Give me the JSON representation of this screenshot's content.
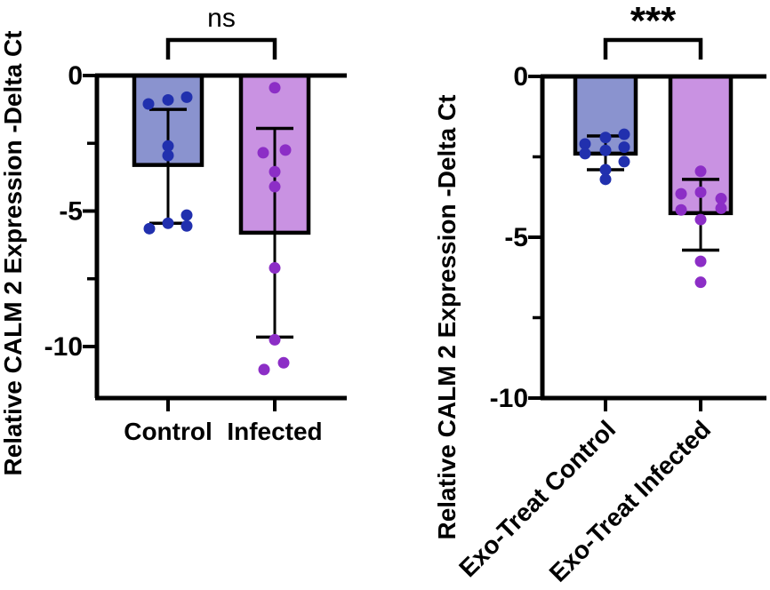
{
  "figure": {
    "background": "#ffffff",
    "axis_color": "#000000",
    "text_color": "#000000"
  },
  "chart_data": [
    {
      "type": "bar",
      "id": "control-vs-infected",
      "title": "",
      "ylabel": "Relative CALM 2 Expression -Delta Ct",
      "xlabel": "",
      "ylim": [
        0,
        -11.9
      ],
      "yticks": [
        {
          "v": 0,
          "label": "0"
        },
        {
          "v": -5,
          "label": "-5"
        },
        {
          "v": -10,
          "label": "-10"
        }
      ],
      "minor_yticks": [
        -2.5,
        -7.5
      ],
      "grid": false,
      "significance": {
        "label": "ns",
        "bold": false,
        "font_size": 30,
        "between": [
          0,
          1
        ]
      },
      "xtick_label_rotation": 0,
      "categories": [
        {
          "label": "Control",
          "mean": -3.3,
          "sd_high": -1.25,
          "sd_low": -5.45,
          "bar_color": "#8a93cf",
          "point_color": "#2130ae",
          "points": [
            {
              "dx": 21,
              "y": -0.8
            },
            {
              "dx": 0,
              "y": -0.9
            },
            {
              "dx": -22,
              "y": -1.05
            },
            {
              "dx": 0,
              "y": -2.6
            },
            {
              "dx": 0,
              "y": -2.95
            },
            {
              "dx": 21,
              "y": -5.15
            },
            {
              "dx": 0,
              "y": -5.45
            },
            {
              "dx": 21,
              "y": -5.55
            },
            {
              "dx": -21,
              "y": -5.65
            }
          ]
        },
        {
          "label": "Infected",
          "mean": -5.8,
          "sd_high": -1.95,
          "sd_low": -9.65,
          "bar_color": "#c992e2",
          "point_color": "#8c2ec6",
          "points": [
            {
              "dx": 0,
              "y": -0.45
            },
            {
              "dx": 12,
              "y": -2.75
            },
            {
              "dx": -13,
              "y": -2.85
            },
            {
              "dx": 0,
              "y": -3.55
            },
            {
              "dx": 0,
              "y": -4.1
            },
            {
              "dx": 0,
              "y": -7.1
            },
            {
              "dx": 0,
              "y": -9.75
            },
            {
              "dx": 10,
              "y": -10.6
            },
            {
              "dx": -12,
              "y": -10.85
            }
          ]
        }
      ]
    },
    {
      "type": "bar",
      "id": "exo-treat-control-vs-infected",
      "title": "",
      "ylabel": "Relative CALM 2 Expression -Delta Ct",
      "xlabel": "",
      "ylim": [
        0,
        -10
      ],
      "yticks": [
        {
          "v": 0,
          "label": "0"
        },
        {
          "v": -5,
          "label": "-5"
        },
        {
          "v": -10,
          "label": "-10"
        }
      ],
      "minor_yticks": [
        -2.5,
        -7.5
      ],
      "grid": false,
      "significance": {
        "label": "***",
        "bold": true,
        "font_size": 44,
        "between": [
          0,
          1
        ]
      },
      "xtick_label_rotation": 45,
      "categories": [
        {
          "label": "Exo-Treat Control",
          "mean": -2.4,
          "sd_high": -1.85,
          "sd_low": -2.9,
          "bar_color": "#8a93cf",
          "point_color": "#2130ae",
          "points": [
            {
              "dx": 21,
              "y": -1.8
            },
            {
              "dx": 0,
              "y": -1.9
            },
            {
              "dx": -23,
              "y": -2.1
            },
            {
              "dx": 21,
              "y": -2.2
            },
            {
              "dx": 0,
              "y": -2.3
            },
            {
              "dx": -23,
              "y": -2.4
            },
            {
              "dx": 21,
              "y": -2.65
            },
            {
              "dx": 0,
              "y": -2.9
            },
            {
              "dx": 0,
              "y": -3.2
            }
          ]
        },
        {
          "label": "Exo-Treat Infected",
          "mean": -4.25,
          "sd_high": -3.2,
          "sd_low": -5.4,
          "bar_color": "#c992e2",
          "point_color": "#8c2ec6",
          "points": [
            {
              "dx": 0,
              "y": -2.95
            },
            {
              "dx": 0,
              "y": -3.6
            },
            {
              "dx": -22,
              "y": -3.65
            },
            {
              "dx": 23,
              "y": -3.8
            },
            {
              "dx": 23,
              "y": -4.1
            },
            {
              "dx": -22,
              "y": -4.15
            },
            {
              "dx": 0,
              "y": -4.45
            },
            {
              "dx": 0,
              "y": -5.75
            },
            {
              "dx": 0,
              "y": -6.4
            }
          ]
        }
      ]
    }
  ]
}
